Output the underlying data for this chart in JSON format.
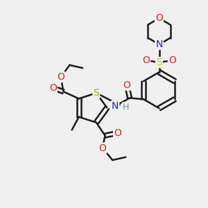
{
  "background_color": "#f0f0f0",
  "atom_colors": {
    "C": "#1a1a1a",
    "H": "#5a9a9a",
    "N": "#2222cc",
    "O": "#dd2222",
    "S_thio": "#aaaa00",
    "S_sulfonyl": "#cccc22"
  },
  "bond_color": "#1a1a1a",
  "bond_width": 1.8,
  "font_size_atom": 10
}
